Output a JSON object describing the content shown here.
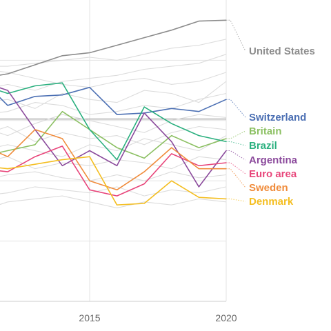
{
  "chart_data": {
    "type": "line",
    "title": "",
    "xlabel": "",
    "ylabel": "",
    "x_ticks": [
      "2015",
      "2020"
    ],
    "xlim": [
      2011,
      2020
    ],
    "ylim": [
      0,
      100
    ],
    "grid": true,
    "legend": "direct labels at right end of lines",
    "reference_line": 60.5,
    "highlighted_series": [
      {
        "name": "United States",
        "color": "#8c8c8c",
        "points": [
          [
            2011,
            74
          ],
          [
            2012,
            75.5
          ],
          [
            2013,
            78.5
          ],
          [
            2014,
            81.5
          ],
          [
            2015,
            82.5
          ],
          [
            2016,
            85
          ],
          [
            2017,
            87.5
          ],
          [
            2018,
            90
          ],
          [
            2019,
            93
          ],
          [
            2020,
            93.3
          ]
        ]
      },
      {
        "name": "Switzerland",
        "color": "#4b6fb3",
        "points": [
          [
            2011,
            74
          ],
          [
            2012,
            65
          ],
          [
            2013,
            68
          ],
          [
            2014,
            68.5
          ],
          [
            2015,
            71
          ],
          [
            2016,
            62
          ],
          [
            2017,
            62.5
          ],
          [
            2018,
            64
          ],
          [
            2019,
            63
          ],
          [
            2020,
            67
          ]
        ]
      },
      {
        "name": "Britain",
        "color": "#8cc063",
        "points": [
          [
            2011,
            48
          ],
          [
            2012,
            50
          ],
          [
            2013,
            52
          ],
          [
            2014,
            63
          ],
          [
            2015,
            57
          ],
          [
            2016,
            51
          ],
          [
            2017,
            47.5
          ],
          [
            2018,
            55
          ],
          [
            2019,
            51
          ],
          [
            2020,
            54
          ]
        ]
      },
      {
        "name": "Brazil",
        "color": "#2bb07f",
        "points": [
          [
            2011,
            72
          ],
          [
            2012,
            69
          ],
          [
            2013,
            71.5
          ],
          [
            2014,
            72.5
          ],
          [
            2015,
            57
          ],
          [
            2016,
            47
          ],
          [
            2017,
            64.5
          ],
          [
            2018,
            59
          ],
          [
            2019,
            55
          ],
          [
            2020,
            53
          ]
        ]
      },
      {
        "name": "Argentina",
        "color": "#8b4a9c",
        "points": [
          [
            2011,
            73
          ],
          [
            2012,
            70
          ],
          [
            2013,
            57
          ],
          [
            2014,
            45
          ],
          [
            2015,
            50
          ],
          [
            2016,
            45
          ],
          [
            2017,
            62.5
          ],
          [
            2018,
            53
          ],
          [
            2019,
            38
          ],
          [
            2020,
            50
          ]
        ]
      },
      {
        "name": "Euro area",
        "color": "#e8457a",
        "points": [
          [
            2011,
            44
          ],
          [
            2012,
            43
          ],
          [
            2013,
            48
          ],
          [
            2014,
            51.5
          ],
          [
            2015,
            37
          ],
          [
            2016,
            35
          ],
          [
            2017,
            39
          ],
          [
            2018,
            49
          ],
          [
            2019,
            45
          ],
          [
            2020,
            46
          ]
        ]
      },
      {
        "name": "Sweden",
        "color": "#f08c3c",
        "points": [
          [
            2011,
            52
          ],
          [
            2012,
            48
          ],
          [
            2013,
            57
          ],
          [
            2014,
            54
          ],
          [
            2015,
            40
          ],
          [
            2016,
            37
          ],
          [
            2017,
            43
          ],
          [
            2018,
            51
          ],
          [
            2019,
            44
          ],
          [
            2020,
            44
          ]
        ]
      },
      {
        "name": "Denmark",
        "color": "#f4be21",
        "points": [
          [
            2011,
            45
          ],
          [
            2012,
            44
          ],
          [
            2013,
            45.5
          ],
          [
            2014,
            47
          ],
          [
            2015,
            48
          ],
          [
            2016,
            32
          ],
          [
            2017,
            32.5
          ],
          [
            2018,
            40
          ],
          [
            2019,
            34.5
          ],
          [
            2020,
            34
          ]
        ]
      }
    ],
    "background_series": [
      {
        "points": [
          [
            2011,
            77
          ],
          [
            2012,
            76
          ],
          [
            2013,
            74
          ],
          [
            2014,
            72
          ],
          [
            2015,
            71
          ],
          [
            2016,
            73
          ],
          [
            2017,
            74
          ],
          [
            2018,
            72
          ],
          [
            2019,
            73
          ],
          [
            2020,
            76
          ]
        ]
      },
      {
        "points": [
          [
            2011,
            70
          ],
          [
            2012,
            72
          ],
          [
            2013,
            70
          ],
          [
            2014,
            73
          ],
          [
            2015,
            74
          ],
          [
            2016,
            75
          ],
          [
            2017,
            77
          ],
          [
            2018,
            78
          ],
          [
            2019,
            79
          ],
          [
            2020,
            82
          ]
        ]
      },
      {
        "points": [
          [
            2011,
            66
          ],
          [
            2012,
            67
          ],
          [
            2013,
            64
          ],
          [
            2014,
            69
          ],
          [
            2015,
            67
          ],
          [
            2016,
            66
          ],
          [
            2017,
            70
          ],
          [
            2018,
            69
          ],
          [
            2019,
            66
          ],
          [
            2020,
            73
          ]
        ]
      },
      {
        "points": [
          [
            2011,
            62
          ],
          [
            2012,
            63
          ],
          [
            2013,
            66
          ],
          [
            2014,
            65
          ],
          [
            2015,
            62
          ],
          [
            2016,
            63
          ],
          [
            2017,
            65
          ],
          [
            2018,
            64
          ],
          [
            2019,
            67
          ],
          [
            2020,
            69
          ]
        ]
      },
      {
        "points": [
          [
            2011,
            58
          ],
          [
            2012,
            55
          ],
          [
            2013,
            59
          ],
          [
            2014,
            62
          ],
          [
            2015,
            60
          ],
          [
            2016,
            58
          ],
          [
            2017,
            56
          ],
          [
            2018,
            60
          ],
          [
            2019,
            62
          ],
          [
            2020,
            61
          ]
        ]
      },
      {
        "points": [
          [
            2011,
            55
          ],
          [
            2012,
            58
          ],
          [
            2013,
            53
          ],
          [
            2014,
            56
          ],
          [
            2015,
            54
          ],
          [
            2016,
            55
          ],
          [
            2017,
            52
          ],
          [
            2018,
            56
          ],
          [
            2019,
            58
          ],
          [
            2020,
            57
          ]
        ]
      },
      {
        "points": [
          [
            2011,
            50
          ],
          [
            2012,
            52
          ],
          [
            2013,
            50
          ],
          [
            2014,
            48
          ],
          [
            2015,
            52
          ],
          [
            2016,
            50
          ],
          [
            2017,
            54
          ],
          [
            2018,
            52
          ],
          [
            2019,
            50
          ],
          [
            2020,
            55
          ]
        ]
      },
      {
        "points": [
          [
            2011,
            46
          ],
          [
            2012,
            48
          ],
          [
            2013,
            44
          ],
          [
            2014,
            46
          ],
          [
            2015,
            45
          ],
          [
            2016,
            47
          ],
          [
            2017,
            46
          ],
          [
            2018,
            44
          ],
          [
            2019,
            48
          ],
          [
            2020,
            47
          ]
        ]
      },
      {
        "points": [
          [
            2011,
            40
          ],
          [
            2012,
            42
          ],
          [
            2013,
            43
          ],
          [
            2014,
            41
          ],
          [
            2015,
            40
          ],
          [
            2016,
            42
          ],
          [
            2017,
            40
          ],
          [
            2018,
            43
          ],
          [
            2019,
            41
          ],
          [
            2020,
            42
          ]
        ]
      },
      {
        "points": [
          [
            2011,
            35
          ],
          [
            2012,
            36
          ],
          [
            2013,
            38
          ],
          [
            2014,
            37
          ],
          [
            2015,
            36
          ],
          [
            2016,
            38
          ],
          [
            2017,
            35
          ],
          [
            2018,
            37
          ],
          [
            2019,
            36
          ],
          [
            2020,
            38
          ]
        ]
      },
      {
        "points": [
          [
            2011,
            30
          ],
          [
            2012,
            33
          ],
          [
            2013,
            34
          ],
          [
            2014,
            35
          ],
          [
            2015,
            33
          ],
          [
            2016,
            31
          ],
          [
            2017,
            33
          ],
          [
            2018,
            32
          ],
          [
            2019,
            34
          ],
          [
            2020,
            33
          ]
        ]
      },
      {
        "points": [
          [
            2011,
            78
          ],
          [
            2012,
            78
          ],
          [
            2013,
            79
          ],
          [
            2014,
            80
          ],
          [
            2015,
            81
          ],
          [
            2016,
            80
          ],
          [
            2017,
            82
          ],
          [
            2018,
            84
          ],
          [
            2019,
            85
          ],
          [
            2020,
            87
          ]
        ]
      }
    ]
  },
  "colors": {
    "grid": "#e3e3e3",
    "axis": "#cccccc",
    "reference": "#999999",
    "background_line": "#dcdcdc",
    "connector": "#bbbbbb"
  }
}
